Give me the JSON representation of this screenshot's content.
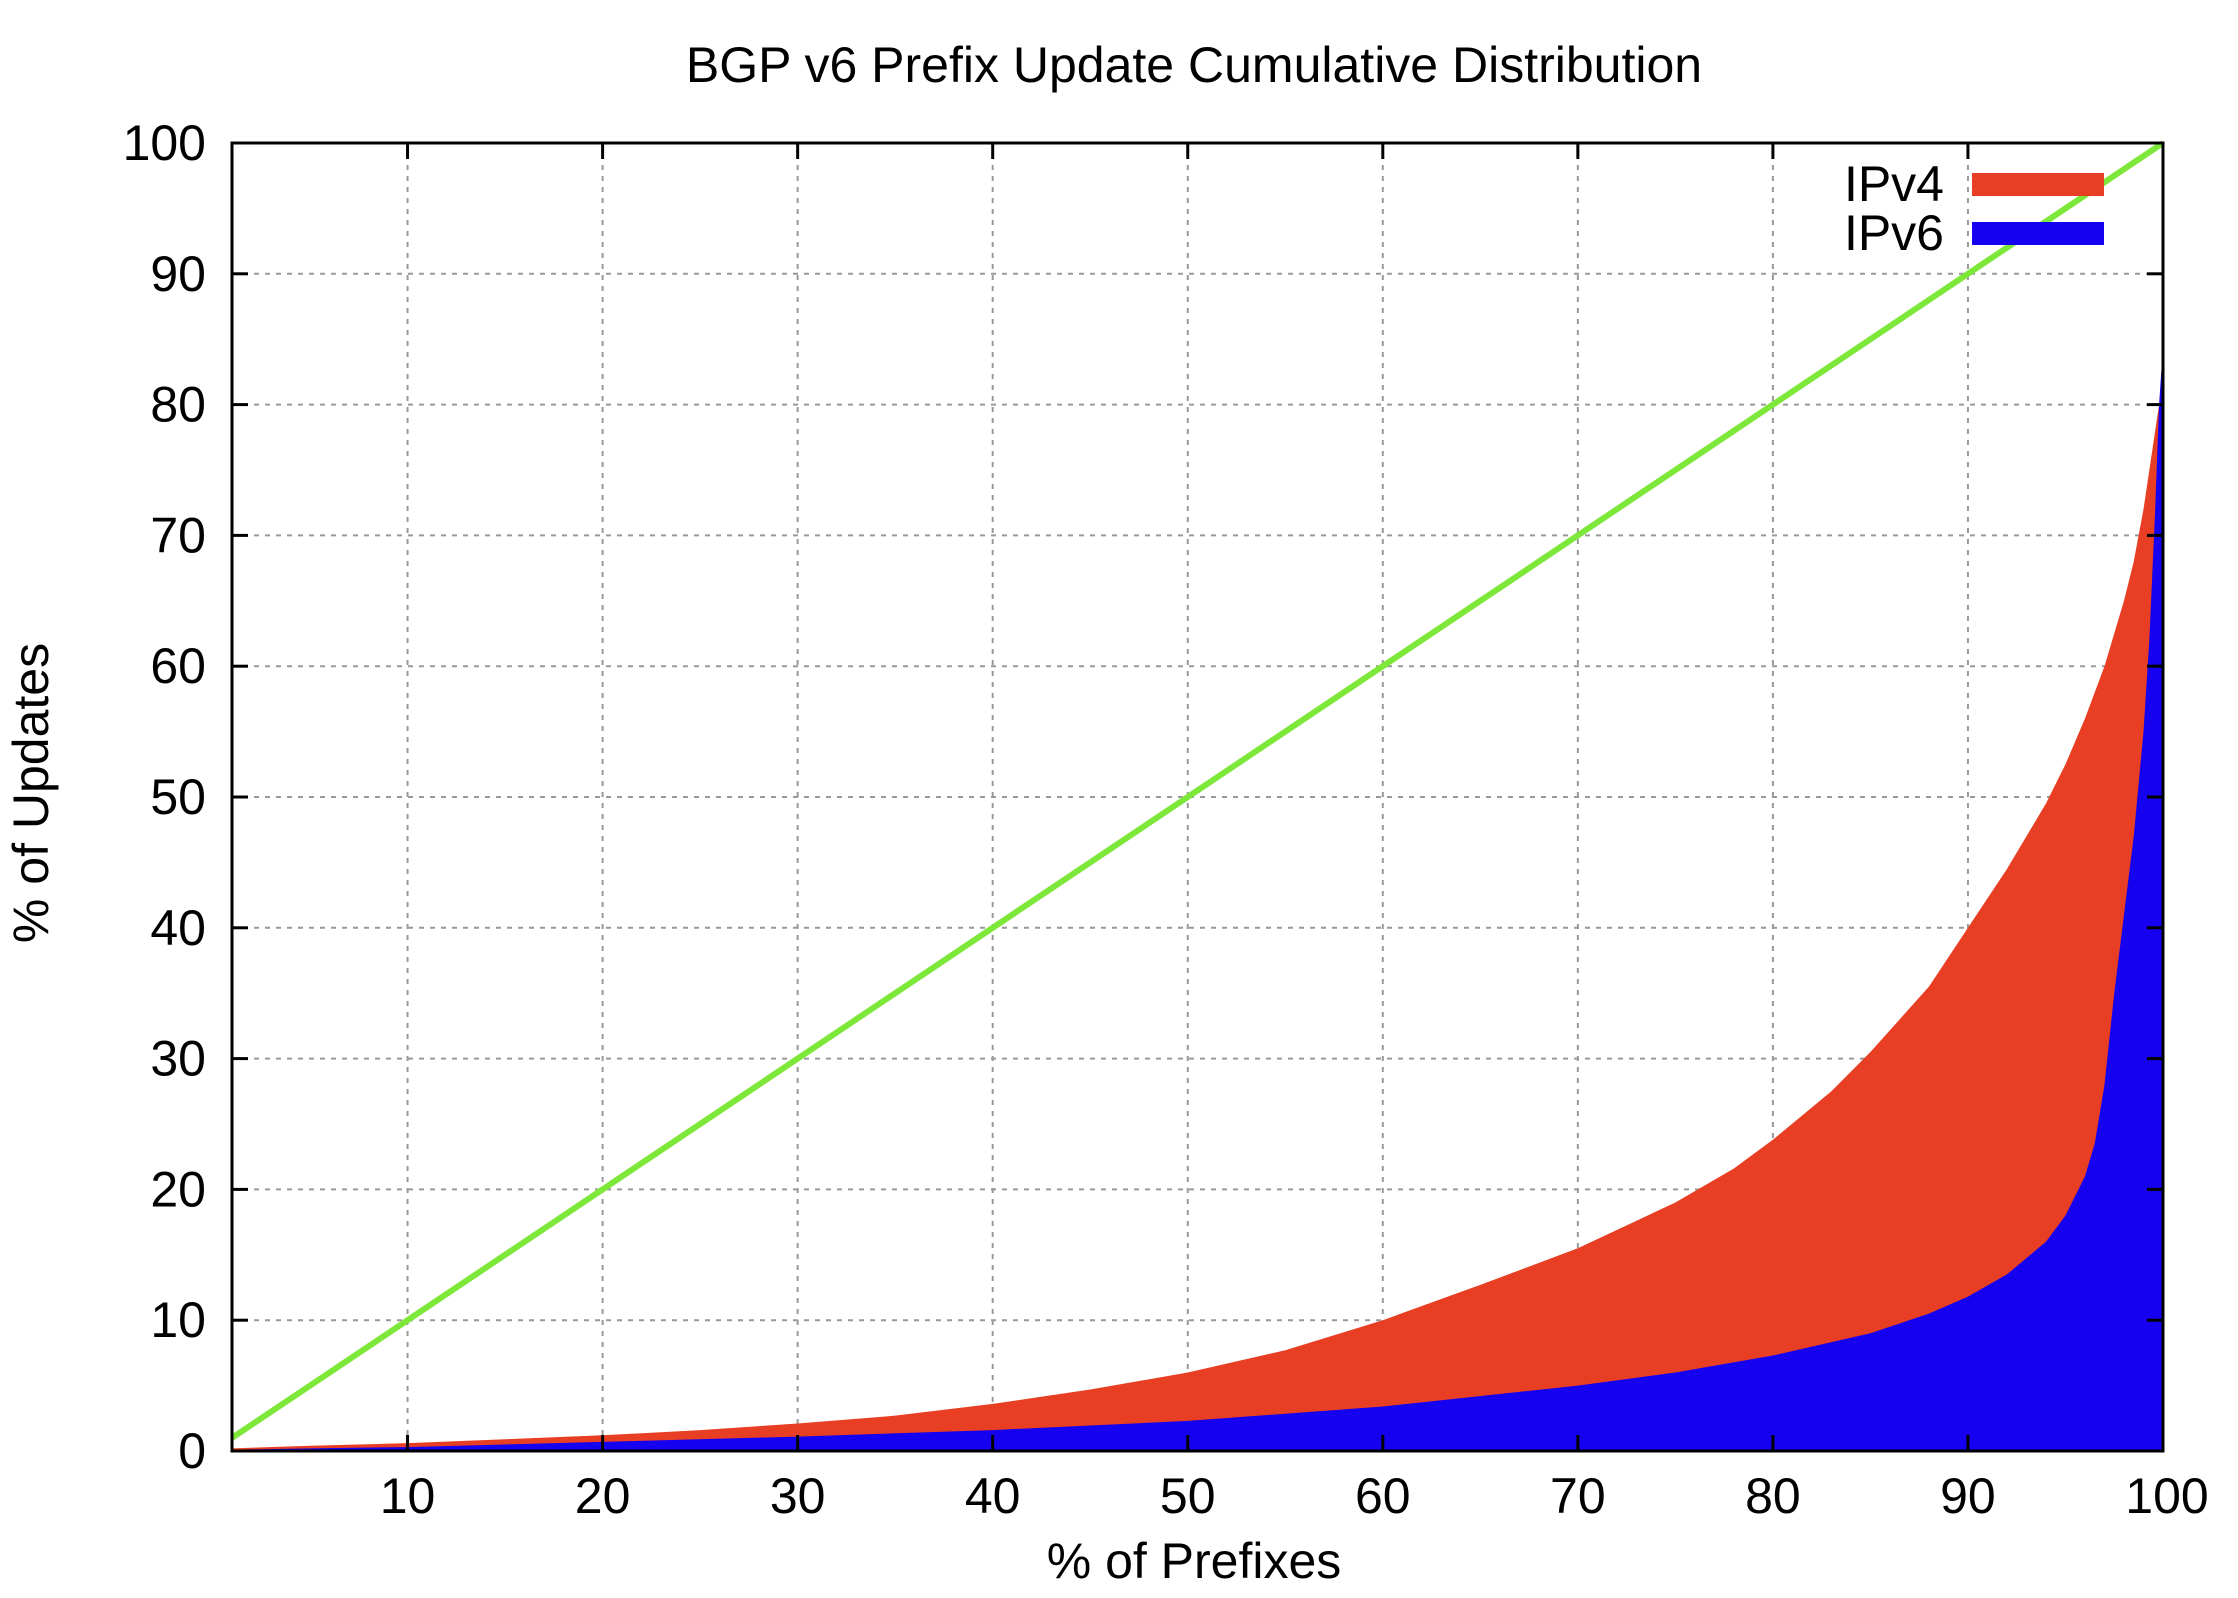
{
  "chart_data": {
    "type": "area",
    "title": "BGP v6 Prefix Update Cumulative Distribution",
    "xlabel": "% of Prefixes",
    "ylabel": "% of Updates",
    "xlim": [
      1,
      100
    ],
    "ylim": [
      0,
      100
    ],
    "xticks": [
      10,
      20,
      30,
      40,
      50,
      60,
      70,
      80,
      90,
      100
    ],
    "yticks": [
      0,
      10,
      20,
      30,
      40,
      50,
      60,
      70,
      80,
      90,
      100
    ],
    "grid": true,
    "legend_position": "top-right",
    "series": [
      {
        "name": "IPv4",
        "color": "#e83e23",
        "x": [
          1,
          5,
          10,
          15,
          20,
          25,
          30,
          35,
          40,
          45,
          50,
          55,
          60,
          65,
          70,
          75,
          78,
          80,
          83,
          85,
          88,
          90,
          92,
          94,
          95,
          96,
          97,
          98,
          98.5,
          99,
          99.3,
          99.6,
          99.8,
          100
        ],
        "y": [
          0.2,
          0.4,
          0.6,
          0.9,
          1.2,
          1.6,
          2.1,
          2.7,
          3.6,
          4.7,
          6.0,
          7.7,
          10.0,
          12.7,
          15.5,
          19.0,
          21.6,
          23.8,
          27.5,
          30.5,
          35.5,
          40.0,
          44.5,
          49.5,
          52.5,
          56.0,
          60.0,
          65.0,
          68.0,
          72.0,
          75.0,
          78.0,
          80.0,
          80.0
        ]
      },
      {
        "name": "IPv6",
        "color": "#1500f0",
        "x": [
          1,
          5,
          10,
          20,
          30,
          40,
          50,
          60,
          70,
          75,
          80,
          85,
          88,
          90,
          92,
          94,
          95,
          96,
          96.5,
          97,
          97.5,
          98,
          98.5,
          99,
          99.3,
          99.6,
          99.8,
          100
        ],
        "y": [
          0.1,
          0.2,
          0.3,
          0.7,
          1.1,
          1.6,
          2.3,
          3.4,
          5.0,
          6.0,
          7.3,
          9.0,
          10.5,
          11.8,
          13.5,
          16.0,
          18.0,
          21.0,
          23.5,
          28.0,
          35.0,
          41.0,
          47.0,
          55.0,
          62.0,
          72.0,
          80.0,
          84.5
        ]
      },
      {
        "name": "",
        "color": "#7de83a",
        "x": [
          1,
          100
        ],
        "y": [
          1,
          100
        ]
      }
    ]
  }
}
